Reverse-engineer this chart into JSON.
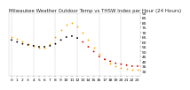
{
  "title": "Milwaukee Weather Outdoor Temp vs THSW Index per Hour (24 Hours)",
  "hours": [
    0,
    1,
    2,
    3,
    4,
    5,
    6,
    7,
    8,
    9,
    10,
    11,
    12,
    13,
    14,
    15,
    16,
    17,
    18,
    19,
    20,
    21,
    22,
    23
  ],
  "temp": [
    62,
    60,
    58,
    57,
    56,
    55,
    55,
    56,
    58,
    62,
    65,
    66,
    64,
    60,
    55,
    50,
    45,
    42,
    40,
    38,
    37,
    36,
    35,
    35
  ],
  "thsw": [
    65,
    63,
    60,
    58,
    56,
    54,
    54,
    58,
    65,
    72,
    78,
    80,
    76,
    70,
    62,
    54,
    48,
    42,
    38,
    35,
    33,
    32,
    31,
    31
  ],
  "temp_color": "#000000",
  "thsw_color": "#FFA500",
  "red_color": "#CC0000",
  "bg_color": "#ffffff",
  "grid_color": "#bbbbbb",
  "title_fontsize": 4.0,
  "tick_fontsize": 3.2,
  "marker_size": 1.8,
  "ylim": [
    25,
    90
  ],
  "xlim": [
    -0.5,
    23.5
  ],
  "red_hours": [
    13,
    14,
    15,
    16,
    17,
    18,
    19,
    20,
    21,
    22,
    23
  ]
}
